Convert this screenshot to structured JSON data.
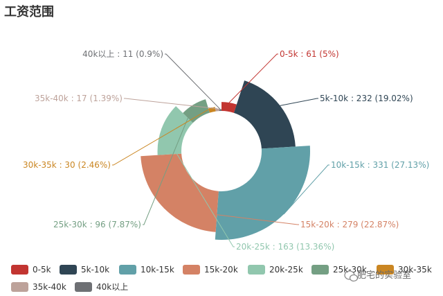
{
  "chart_data": {
    "type": "pie",
    "variant": "nightingale-rose",
    "title": "工资范围",
    "series": [
      {
        "name": "0-5k",
        "value": 61,
        "percent": "5%",
        "label": "0-5k : 61 (5%)",
        "color": "#c23531"
      },
      {
        "name": "5k-10k",
        "value": 232,
        "percent": "19.02%",
        "label": "5k-10k : 232 (19.02%)",
        "color": "#2f4554"
      },
      {
        "name": "10k-15k",
        "value": 331,
        "percent": "27.13%",
        "label": "10k-15k : 331 (27.13%)",
        "color": "#61a0a8"
      },
      {
        "name": "15k-20k",
        "value": 279,
        "percent": "22.87%",
        "label": "15k-20k : 279 (22.87%)",
        "color": "#d48265"
      },
      {
        "name": "20k-25k",
        "value": 163,
        "percent": "13.36%",
        "label": "20k-25k : 163 (13.36%)",
        "color": "#91c7ae"
      },
      {
        "name": "25k-30k",
        "value": 96,
        "percent": "7.87%",
        "label": "25k-30k : 96 (7.87%)",
        "color": "#749f83"
      },
      {
        "name": "30k-35k",
        "value": 30,
        "percent": "2.46%",
        "label": "30k-35k : 30 (2.46%)",
        "color": "#ca8622"
      },
      {
        "name": "35k-40k",
        "value": 17,
        "percent": "1.39%",
        "label": "35k-40k : 17 (1.39%)",
        "color": "#bda29a"
      },
      {
        "name": "40k以上",
        "value": 11,
        "percent": "0.9%",
        "label": "40k以上 : 11 (0.9%)",
        "color": "#6e7074"
      }
    ],
    "legend_position": "bottom-left"
  },
  "watermark": "肥宅的实验室"
}
